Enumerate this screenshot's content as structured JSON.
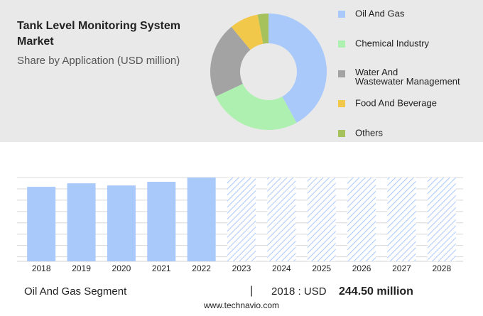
{
  "chart_data": [
    {
      "type": "donut",
      "title": "Tank Level Monitoring System Market",
      "subtitle": "Share by Application (USD million)",
      "categories": [
        "Oil And Gas",
        "Chemical Industry",
        "Water And Wastewater Management",
        "Food And Beverage",
        "Others"
      ],
      "values": [
        42,
        26,
        21,
        8,
        3
      ],
      "colors": [
        "#a9c9fb",
        "#aef0b0",
        "#a3a3a3",
        "#f2c84b",
        "#a6c25c"
      ]
    },
    {
      "type": "bar",
      "categories": [
        "2018",
        "2019",
        "2020",
        "2021",
        "2022",
        "2023",
        "2024",
        "2025",
        "2026",
        "2027",
        "2028"
      ],
      "values": [
        244.5,
        256,
        249,
        261,
        275,
        null,
        null,
        null,
        null,
        null,
        null
      ],
      "color": "#a9c9fb",
      "ylim": [
        0,
        275
      ]
    }
  ],
  "footer": {
    "segment": "Oil And Gas Segment",
    "separator": "|",
    "year_label": "2018 : USD",
    "value": "244.50 million",
    "source": "www.technavio.com"
  }
}
